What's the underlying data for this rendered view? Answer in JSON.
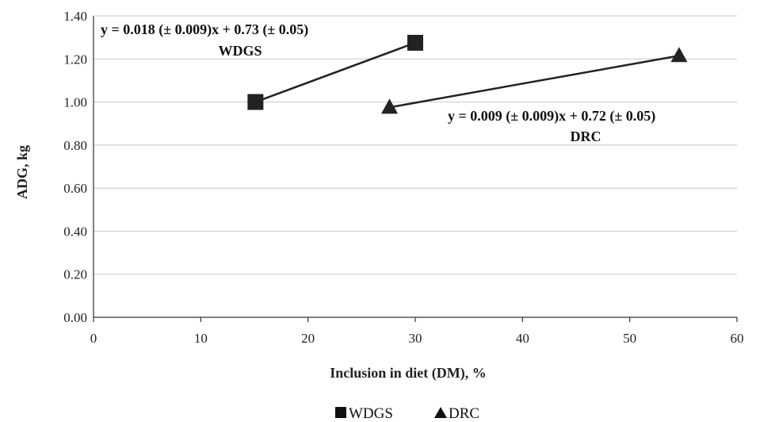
{
  "chart_data": {
    "type": "line",
    "xlabel": "Inclusion in diet (DM), %",
    "ylabel": "ADG, kg",
    "xlim": [
      0,
      60
    ],
    "ylim": [
      0,
      1.4
    ],
    "x_ticks": [
      "0",
      "10",
      "20",
      "30",
      "40",
      "50",
      "60"
    ],
    "y_ticks": [
      "0.00",
      "0.20",
      "0.40",
      "0.60",
      "0.80",
      "1.00",
      "1.20",
      "1.40"
    ],
    "grid": "horizontal",
    "legend_position": "bottom",
    "series": [
      {
        "name": "WDGS",
        "marker": "square",
        "color": "#222222",
        "points": [
          {
            "x": 15.1,
            "y": 1.0
          },
          {
            "x": 30.0,
            "y": 1.275
          }
        ],
        "equation": "y = 0.018 (± 0.009)x + 0.73 (± 0.05)",
        "label": "WDGS"
      },
      {
        "name": "DRC",
        "marker": "triangle",
        "color": "#222222",
        "points": [
          {
            "x": 27.6,
            "y": 0.975
          },
          {
            "x": 54.6,
            "y": 1.215
          }
        ],
        "equation": "y = 0.009 (± 0.009)x + 0.72 (± 0.05)",
        "label": "DRC"
      }
    ]
  }
}
